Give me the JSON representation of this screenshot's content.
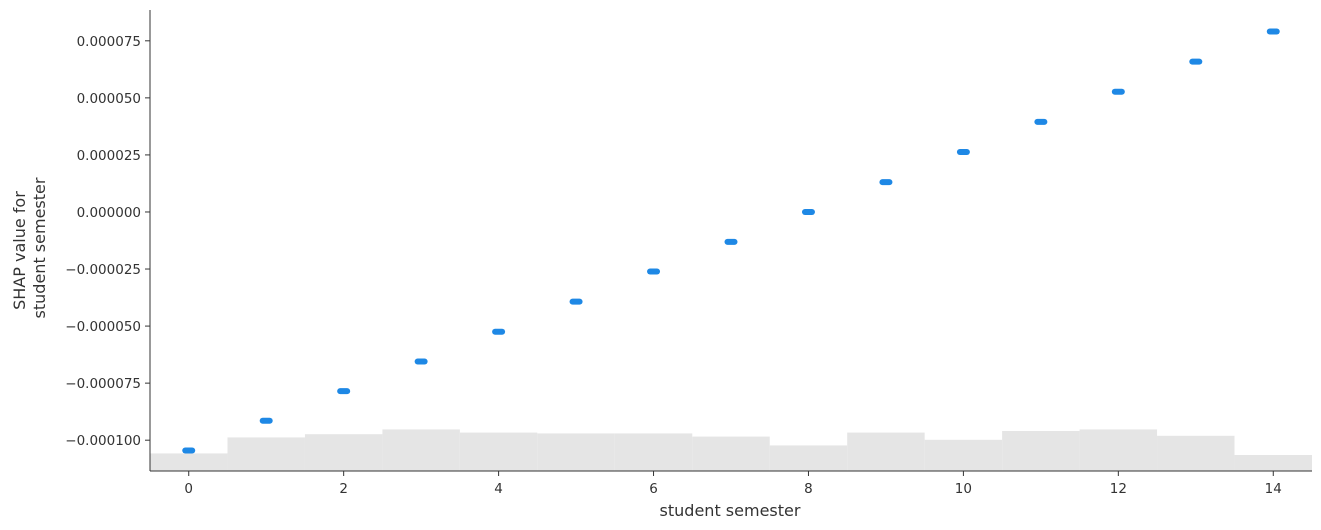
{
  "chart_data": {
    "type": "scatter",
    "title": "",
    "xlabel": "student semester",
    "ylabel_lines": [
      "SHAP value for",
      "student semester"
    ],
    "xlim": [
      -0.5,
      14.5
    ],
    "ylim": [
      -0.0001135,
      8.85e-05
    ],
    "x_ticks": [
      0,
      2,
      4,
      6,
      8,
      10,
      12,
      14
    ],
    "x_tick_labels": [
      "0",
      "2",
      "4",
      "6",
      "8",
      "10",
      "12",
      "14"
    ],
    "y_ticks": [
      7.5e-05,
      5e-05,
      2.5e-05,
      0.0,
      -2.5e-05,
      -5e-05,
      -7.5e-05,
      -0.0001
    ],
    "y_tick_labels": [
      "0.000075",
      "0.000050",
      "0.000025",
      "0.000000",
      "−0.000025",
      "−0.000050",
      "−0.000075",
      "−0.000100"
    ],
    "grid": false,
    "point_color": "#1e88e5",
    "histogram_color": "#e5e5e5",
    "series": [
      {
        "x": [
          0,
          1,
          2,
          3,
          4,
          5,
          6,
          7,
          8,
          9,
          10,
          11,
          12,
          13,
          14
        ],
        "y": [
          -0.0001045,
          -9.15e-05,
          -7.85e-05,
          -6.55e-05,
          -5.25e-05,
          -3.93e-05,
          -2.61e-05,
          -1.31e-05,
          0.0,
          1.31e-05,
          2.63e-05,
          3.95e-05,
          5.27e-05,
          6.59e-05,
          7.91e-05
        ]
      }
    ],
    "histogram": {
      "bins": [
        0,
        1,
        2,
        3,
        4,
        5,
        6,
        7,
        8,
        9,
        10,
        11,
        12,
        13,
        14
      ],
      "relative_heights": [
        0.22,
        0.42,
        0.46,
        0.52,
        0.48,
        0.47,
        0.47,
        0.43,
        0.32,
        0.48,
        0.39,
        0.5,
        0.52,
        0.44,
        0.2
      ]
    }
  }
}
